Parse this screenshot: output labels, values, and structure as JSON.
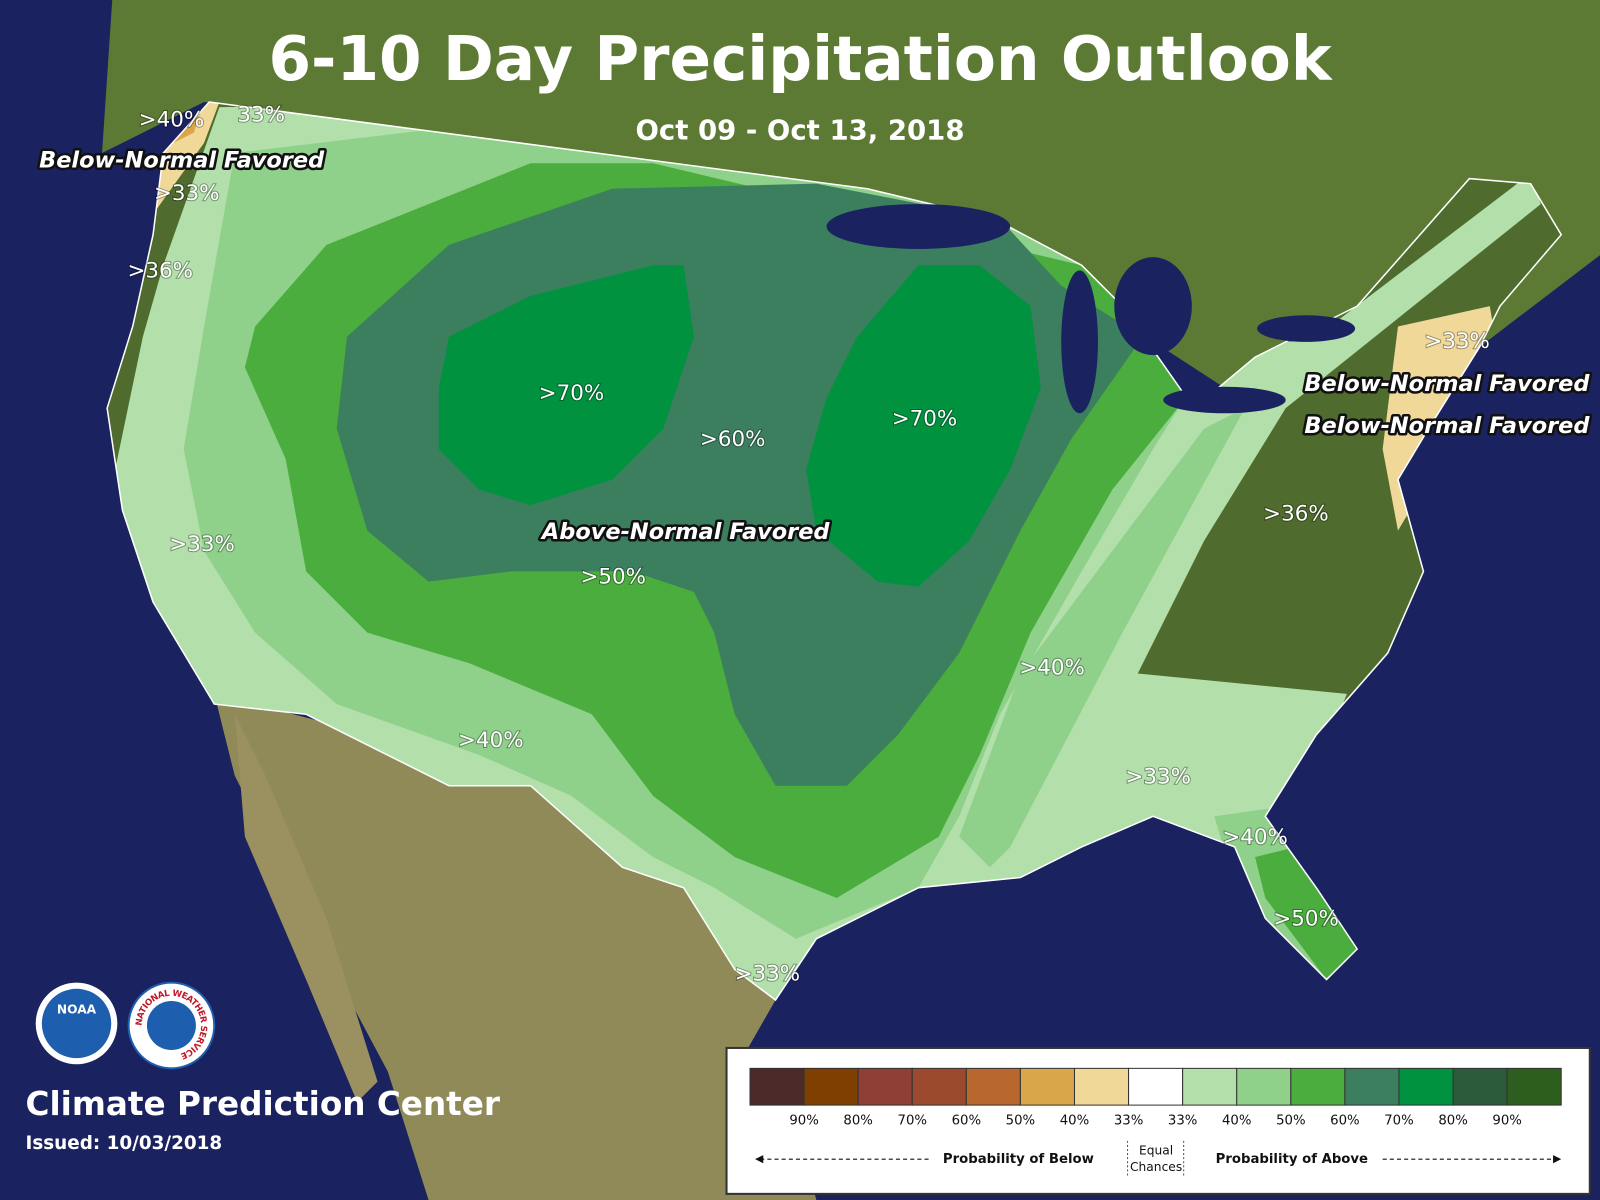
{
  "title": "6-10 Day Precipitation Outlook",
  "subtitle": "Oct 09 - Oct 13, 2018",
  "map_labels": [
    ">40%",
    "33%",
    "Below-Normal Favored",
    ">33%",
    ">36%",
    ">33%",
    ">70%",
    ">60%",
    ">70%",
    "Above-Normal Favored",
    ">50%",
    ">40%",
    ">40%",
    ">33%",
    ">40%",
    ">50%",
    ">33%",
    ">33%",
    "Below-Normal Favored",
    "Below-Normal Favored",
    ">36%"
  ],
  "footer": {
    "agency": "Climate Prediction Center",
    "issued": "Issued: 10/03/2018",
    "logo_noaa": "NOAA",
    "logo_nws": "NATIONAL WEATHER SERVICE"
  },
  "legend": {
    "colors": [
      "#4d2a2a",
      "#7f3f00",
      "#8f3f35",
      "#9b4a2e",
      "#b8682e",
      "#d9a74a",
      "#f0d898",
      "#ffffff",
      "#b2dfaa",
      "#8fd18a",
      "#4aad3e",
      "#3b7f5f",
      "#00923f",
      "#2b5b3b",
      "#2e5e1e"
    ],
    "labels": [
      "90%",
      "80%",
      "70%",
      "60%",
      "50%",
      "40%",
      "33%",
      "33%",
      "40%",
      "50%",
      "60%",
      "70%",
      "80%",
      "90%"
    ],
    "below": "Probability of Below",
    "equal": [
      "Equal",
      "Chances"
    ],
    "above": "Probability of Above"
  }
}
